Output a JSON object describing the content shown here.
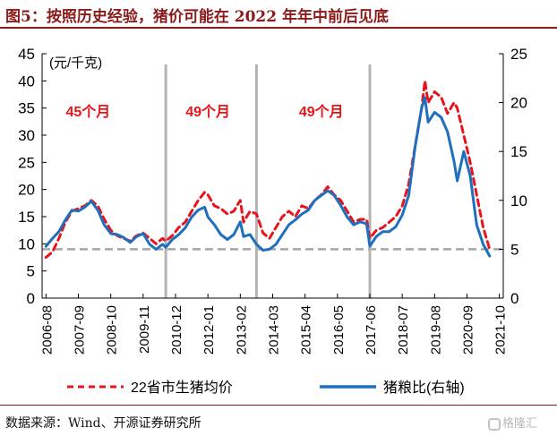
{
  "figure": {
    "title": "图5：按照历史经验，猪价可能在 2022 年年中前后见底",
    "source": "数据来源：Wind、开源证券研究所",
    "watermark": "格隆汇"
  },
  "chart_data": {
    "type": "line",
    "title": "",
    "y_left_unit": "(元/千克)",
    "y_left_ticks": [
      0,
      5,
      10,
      15,
      20,
      25,
      30,
      35,
      40,
      45
    ],
    "y_left_range": [
      0,
      45
    ],
    "y_right_ticks": [
      0,
      5,
      10,
      15,
      20,
      25
    ],
    "y_right_range": [
      0,
      25
    ],
    "x_ticks": [
      "2006-08",
      "2007-09",
      "2008-10",
      "2009-11",
      "2010-12",
      "2012-01",
      "2013-02",
      "2014-03",
      "2015-04",
      "2016-05",
      "2017-06",
      "2018-07",
      "2019-08",
      "2020-09",
      "2021-10"
    ],
    "x_tick_positions": [
      0,
      1,
      2,
      3,
      4,
      5,
      6,
      7,
      8,
      9,
      10,
      11,
      12,
      13,
      14
    ],
    "vertical_lines": [
      3.7,
      6.5,
      10.0
    ],
    "reference_line_right": 5,
    "cycle_annotations": [
      {
        "text": "45个月",
        "x": 1.3,
        "y": 33.5
      },
      {
        "text": "49个月",
        "x": 5.0,
        "y": 33.5
      },
      {
        "text": "49个月",
        "x": 8.5,
        "y": 33.5
      }
    ],
    "series": [
      {
        "name": "22省市生猪均价",
        "axis": "left",
        "style": "dashed",
        "color": "#e8141b",
        "points": [
          [
            0.0,
            7.5
          ],
          [
            0.2,
            8.5
          ],
          [
            0.4,
            11
          ],
          [
            0.6,
            14
          ],
          [
            0.8,
            16
          ],
          [
            1.0,
            16.5
          ],
          [
            1.2,
            17
          ],
          [
            1.4,
            18
          ],
          [
            1.6,
            17
          ],
          [
            1.8,
            14.5
          ],
          [
            2.0,
            12.5
          ],
          [
            2.2,
            11.5
          ],
          [
            2.4,
            11
          ],
          [
            2.6,
            10.5
          ],
          [
            2.8,
            11.5
          ],
          [
            3.0,
            12
          ],
          [
            3.2,
            11
          ],
          [
            3.4,
            10
          ],
          [
            3.6,
            11
          ],
          [
            3.7,
            10.5
          ],
          [
            3.9,
            11.5
          ],
          [
            4.1,
            13
          ],
          [
            4.3,
            14
          ],
          [
            4.5,
            16
          ],
          [
            4.7,
            18
          ],
          [
            4.9,
            19.5
          ],
          [
            5.0,
            19
          ],
          [
            5.2,
            17
          ],
          [
            5.4,
            16.5
          ],
          [
            5.6,
            15.5
          ],
          [
            5.8,
            16
          ],
          [
            6.0,
            18
          ],
          [
            6.1,
            14
          ],
          [
            6.3,
            16
          ],
          [
            6.5,
            15.5
          ],
          [
            6.7,
            12
          ],
          [
            6.9,
            11
          ],
          [
            7.1,
            13
          ],
          [
            7.3,
            15
          ],
          [
            7.5,
            16
          ],
          [
            7.7,
            15
          ],
          [
            7.9,
            17
          ],
          [
            8.1,
            16.5
          ],
          [
            8.3,
            18
          ],
          [
            8.5,
            19
          ],
          [
            8.7,
            20.5
          ],
          [
            8.9,
            19
          ],
          [
            9.1,
            18
          ],
          [
            9.3,
            16
          ],
          [
            9.5,
            14
          ],
          [
            9.7,
            14.5
          ],
          [
            9.9,
            14.5
          ],
          [
            10.0,
            11
          ],
          [
            10.2,
            12.5
          ],
          [
            10.4,
            13
          ],
          [
            10.6,
            14
          ],
          [
            10.8,
            15
          ],
          [
            11.0,
            17
          ],
          [
            11.2,
            21
          ],
          [
            11.4,
            28
          ],
          [
            11.6,
            35
          ],
          [
            11.7,
            40
          ],
          [
            11.8,
            36
          ],
          [
            12.0,
            38
          ],
          [
            12.2,
            37
          ],
          [
            12.4,
            34
          ],
          [
            12.6,
            36
          ],
          [
            12.7,
            35
          ],
          [
            12.9,
            30
          ],
          [
            13.1,
            25
          ],
          [
            13.3,
            19
          ],
          [
            13.5,
            13
          ],
          [
            13.7,
            9
          ]
        ]
      },
      {
        "name": "猪粮比(右轴)",
        "axis": "right",
        "style": "solid",
        "color": "#1f6fbf",
        "points": [
          [
            0.0,
            5.3
          ],
          [
            0.2,
            6.1
          ],
          [
            0.4,
            6.8
          ],
          [
            0.6,
            8.0
          ],
          [
            0.8,
            9.0
          ],
          [
            1.0,
            8.9
          ],
          [
            1.2,
            9.3
          ],
          [
            1.4,
            9.9
          ],
          [
            1.6,
            9.0
          ],
          [
            1.8,
            7.5
          ],
          [
            2.0,
            6.6
          ],
          [
            2.2,
            6.5
          ],
          [
            2.4,
            6.2
          ],
          [
            2.6,
            5.7
          ],
          [
            2.8,
            6.3
          ],
          [
            3.0,
            6.6
          ],
          [
            3.2,
            5.5
          ],
          [
            3.4,
            5.0
          ],
          [
            3.6,
            5.5
          ],
          [
            3.7,
            5.2
          ],
          [
            3.9,
            6.0
          ],
          [
            4.1,
            6.5
          ],
          [
            4.3,
            7.2
          ],
          [
            4.5,
            8.3
          ],
          [
            4.7,
            9.0
          ],
          [
            4.9,
            9.3
          ],
          [
            5.0,
            8.3
          ],
          [
            5.2,
            7.5
          ],
          [
            5.4,
            6.5
          ],
          [
            5.6,
            6.0
          ],
          [
            5.8,
            6.5
          ],
          [
            6.0,
            7.8
          ],
          [
            6.1,
            6.3
          ],
          [
            6.3,
            6.5
          ],
          [
            6.5,
            5.5
          ],
          [
            6.7,
            4.9
          ],
          [
            6.9,
            5.0
          ],
          [
            7.1,
            5.5
          ],
          [
            7.3,
            6.5
          ],
          [
            7.5,
            7.5
          ],
          [
            7.7,
            8.0
          ],
          [
            7.9,
            8.6
          ],
          [
            8.1,
            9.0
          ],
          [
            8.3,
            10.0
          ],
          [
            8.5,
            10.5
          ],
          [
            8.7,
            11.0
          ],
          [
            8.9,
            10.5
          ],
          [
            9.1,
            9.5
          ],
          [
            9.3,
            8.3
          ],
          [
            9.5,
            7.5
          ],
          [
            9.7,
            7.8
          ],
          [
            9.9,
            7.6
          ],
          [
            10.0,
            5.3
          ],
          [
            10.2,
            6.3
          ],
          [
            10.4,
            6.8
          ],
          [
            10.6,
            6.8
          ],
          [
            10.8,
            7.3
          ],
          [
            11.0,
            8.5
          ],
          [
            11.2,
            10.5
          ],
          [
            11.4,
            15.5
          ],
          [
            11.6,
            19.5
          ],
          [
            11.7,
            20.5
          ],
          [
            11.8,
            18.0
          ],
          [
            12.0,
            19.0
          ],
          [
            12.2,
            18.5
          ],
          [
            12.4,
            17.0
          ],
          [
            12.6,
            14.0
          ],
          [
            12.7,
            12.0
          ],
          [
            12.9,
            15.0
          ],
          [
            13.1,
            12.5
          ],
          [
            13.3,
            7.5
          ],
          [
            13.5,
            5.5
          ],
          [
            13.7,
            4.3
          ]
        ]
      }
    ],
    "legend": [
      "22省市生猪均价",
      "猪粮比(右轴)"
    ],
    "legend_position": "bottom"
  }
}
